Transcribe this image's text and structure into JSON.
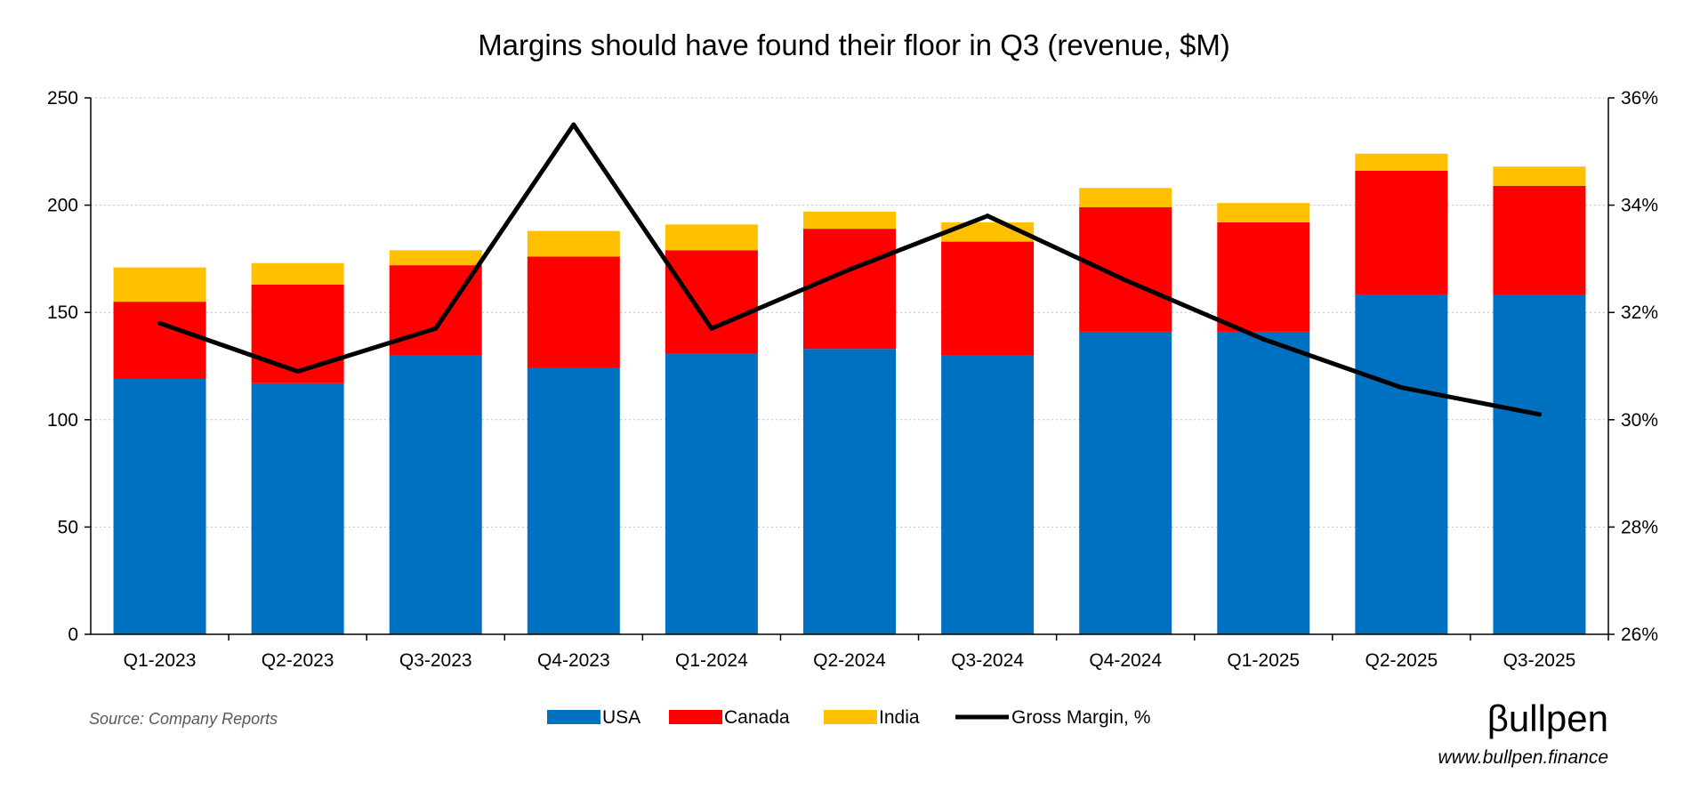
{
  "chart_data": {
    "type": "bar",
    "stacked": true,
    "title": "Margins should have found their floor in Q3 (revenue, $M)",
    "categories": [
      "Q1-2023",
      "Q2-2023",
      "Q3-2023",
      "Q4-2023",
      "Q1-2024",
      "Q2-2024",
      "Q3-2024",
      "Q4-2024",
      "Q1-2025",
      "Q2-2025",
      "Q3-2025"
    ],
    "series": [
      {
        "name": "USA",
        "color": "#0070C0",
        "axis": "left",
        "values": [
          119,
          117,
          130,
          124,
          131,
          133,
          130,
          141,
          141,
          158,
          158
        ]
      },
      {
        "name": "Canada",
        "color": "#FF0000",
        "axis": "left",
        "values": [
          36,
          46,
          42,
          52,
          48,
          56,
          53,
          58,
          51,
          58,
          51
        ]
      },
      {
        "name": "India",
        "color": "#FFC000",
        "axis": "left",
        "values": [
          16,
          10,
          7,
          12,
          12,
          8,
          9,
          9,
          9,
          8,
          9
        ]
      },
      {
        "name": "Gross Margin, %",
        "color": "#000000",
        "type": "line",
        "axis": "right",
        "values": [
          31.8,
          30.9,
          31.7,
          35.5,
          31.7,
          32.8,
          33.8,
          32.6,
          31.5,
          30.6,
          30.1
        ]
      }
    ],
    "y_left": {
      "min": 0,
      "max": 250,
      "ticks": [
        "0",
        "50",
        "100",
        "150",
        "200",
        "250"
      ]
    },
    "y_right": {
      "min": 26,
      "max": 36,
      "ticks": [
        "26%",
        "28%",
        "30%",
        "32%",
        "34%",
        "36%"
      ]
    },
    "grid": true,
    "legend_position": "bottom"
  },
  "footer": {
    "source": "Source: Company Reports",
    "brand": "βullpen",
    "website": "www.bullpen.finance"
  }
}
